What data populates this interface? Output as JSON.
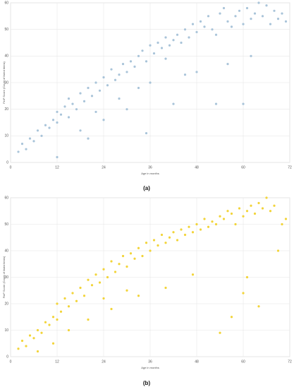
{
  "chart_data": [
    {
      "type": "scatter",
      "caption": "(a)",
      "xlabel": "Age in months",
      "ylabel": "FinP Score (Count of listed items)",
      "color": "#a9c4d9",
      "grid": true,
      "xlim": [
        0,
        72
      ],
      "xticks": [
        0,
        12,
        24,
        36,
        48,
        60,
        72
      ],
      "ylim": [
        0,
        60
      ],
      "yticks": [
        0,
        10,
        20,
        30,
        40,
        50,
        60
      ],
      "x": [
        2,
        3,
        4,
        5,
        6,
        7,
        8,
        9,
        10,
        11,
        12,
        12,
        13,
        14,
        15,
        15,
        16,
        17,
        18,
        19,
        20,
        21,
        22,
        22,
        23,
        24,
        25,
        26,
        27,
        28,
        28,
        29,
        30,
        31,
        32,
        33,
        33,
        34,
        35,
        36,
        36,
        37,
        38,
        39,
        40,
        40,
        41,
        42,
        42,
        43,
        44,
        45,
        46,
        47,
        48,
        48,
        49,
        50,
        51,
        52,
        53,
        54,
        55,
        56,
        57,
        58,
        59,
        60,
        60,
        61,
        62,
        63,
        64,
        65,
        66,
        67,
        68,
        69,
        70,
        71,
        18,
        24,
        30,
        35,
        20,
        12,
        56,
        62,
        45,
        53
      ],
      "values": [
        4,
        7,
        5,
        9,
        8,
        12,
        10,
        14,
        13,
        16,
        15,
        19,
        18,
        21,
        17,
        24,
        22,
        20,
        26,
        23,
        28,
        25,
        30,
        19,
        27,
        32,
        29,
        35,
        31,
        33,
        24,
        37,
        34,
        38,
        36,
        40,
        28,
        42,
        38,
        44,
        30,
        41,
        45,
        43,
        39,
        47,
        44,
        46,
        22,
        48,
        45,
        50,
        47,
        52,
        49,
        34,
        53,
        51,
        55,
        50,
        48,
        56,
        58,
        53,
        51,
        55,
        57,
        52,
        22,
        58,
        54,
        56,
        60,
        55,
        59,
        52,
        57,
        54,
        56,
        53,
        12,
        16,
        20,
        11,
        9,
        2,
        37,
        40,
        33,
        22
      ]
    },
    {
      "type": "scatter",
      "caption": "(b)",
      "xlabel": "Age in months",
      "ylabel": "FinP Score (Count of listed items)",
      "color": "#f2d43a",
      "grid": true,
      "xlim": [
        0,
        72
      ],
      "xticks": [
        0,
        12,
        24,
        36,
        48,
        60,
        72
      ],
      "ylim": [
        0,
        60
      ],
      "yticks": [
        0,
        10,
        20,
        30,
        40,
        50,
        60
      ],
      "x": [
        2,
        3,
        4,
        5,
        6,
        7,
        8,
        9,
        10,
        11,
        12,
        12,
        13,
        14,
        15,
        16,
        17,
        18,
        19,
        20,
        21,
        22,
        23,
        24,
        24,
        25,
        26,
        27,
        28,
        29,
        30,
        30,
        31,
        32,
        33,
        34,
        35,
        36,
        37,
        38,
        39,
        40,
        41,
        42,
        43,
        44,
        45,
        46,
        47,
        48,
        49,
        50,
        51,
        52,
        53,
        54,
        55,
        56,
        57,
        58,
        59,
        60,
        61,
        62,
        63,
        64,
        65,
        66,
        67,
        68,
        69,
        70,
        71,
        15,
        20,
        26,
        33,
        40,
        47,
        54,
        57,
        61,
        64,
        60,
        11,
        7
      ],
      "values": [
        3,
        6,
        4,
        8,
        7,
        10,
        9,
        13,
        12,
        15,
        14,
        20,
        17,
        22,
        19,
        24,
        21,
        26,
        23,
        29,
        27,
        31,
        28,
        33,
        22,
        30,
        36,
        32,
        35,
        38,
        34,
        25,
        39,
        37,
        41,
        38,
        43,
        40,
        44,
        42,
        46,
        43,
        45,
        47,
        44,
        48,
        46,
        49,
        47,
        50,
        48,
        52,
        49,
        51,
        50,
        53,
        52,
        55,
        54,
        50,
        56,
        53,
        55,
        57,
        54,
        58,
        56,
        60,
        55,
        57,
        40,
        50,
        52,
        10,
        14,
        18,
        23,
        26,
        31,
        9,
        15,
        30,
        19,
        24,
        5,
        2
      ]
    }
  ]
}
